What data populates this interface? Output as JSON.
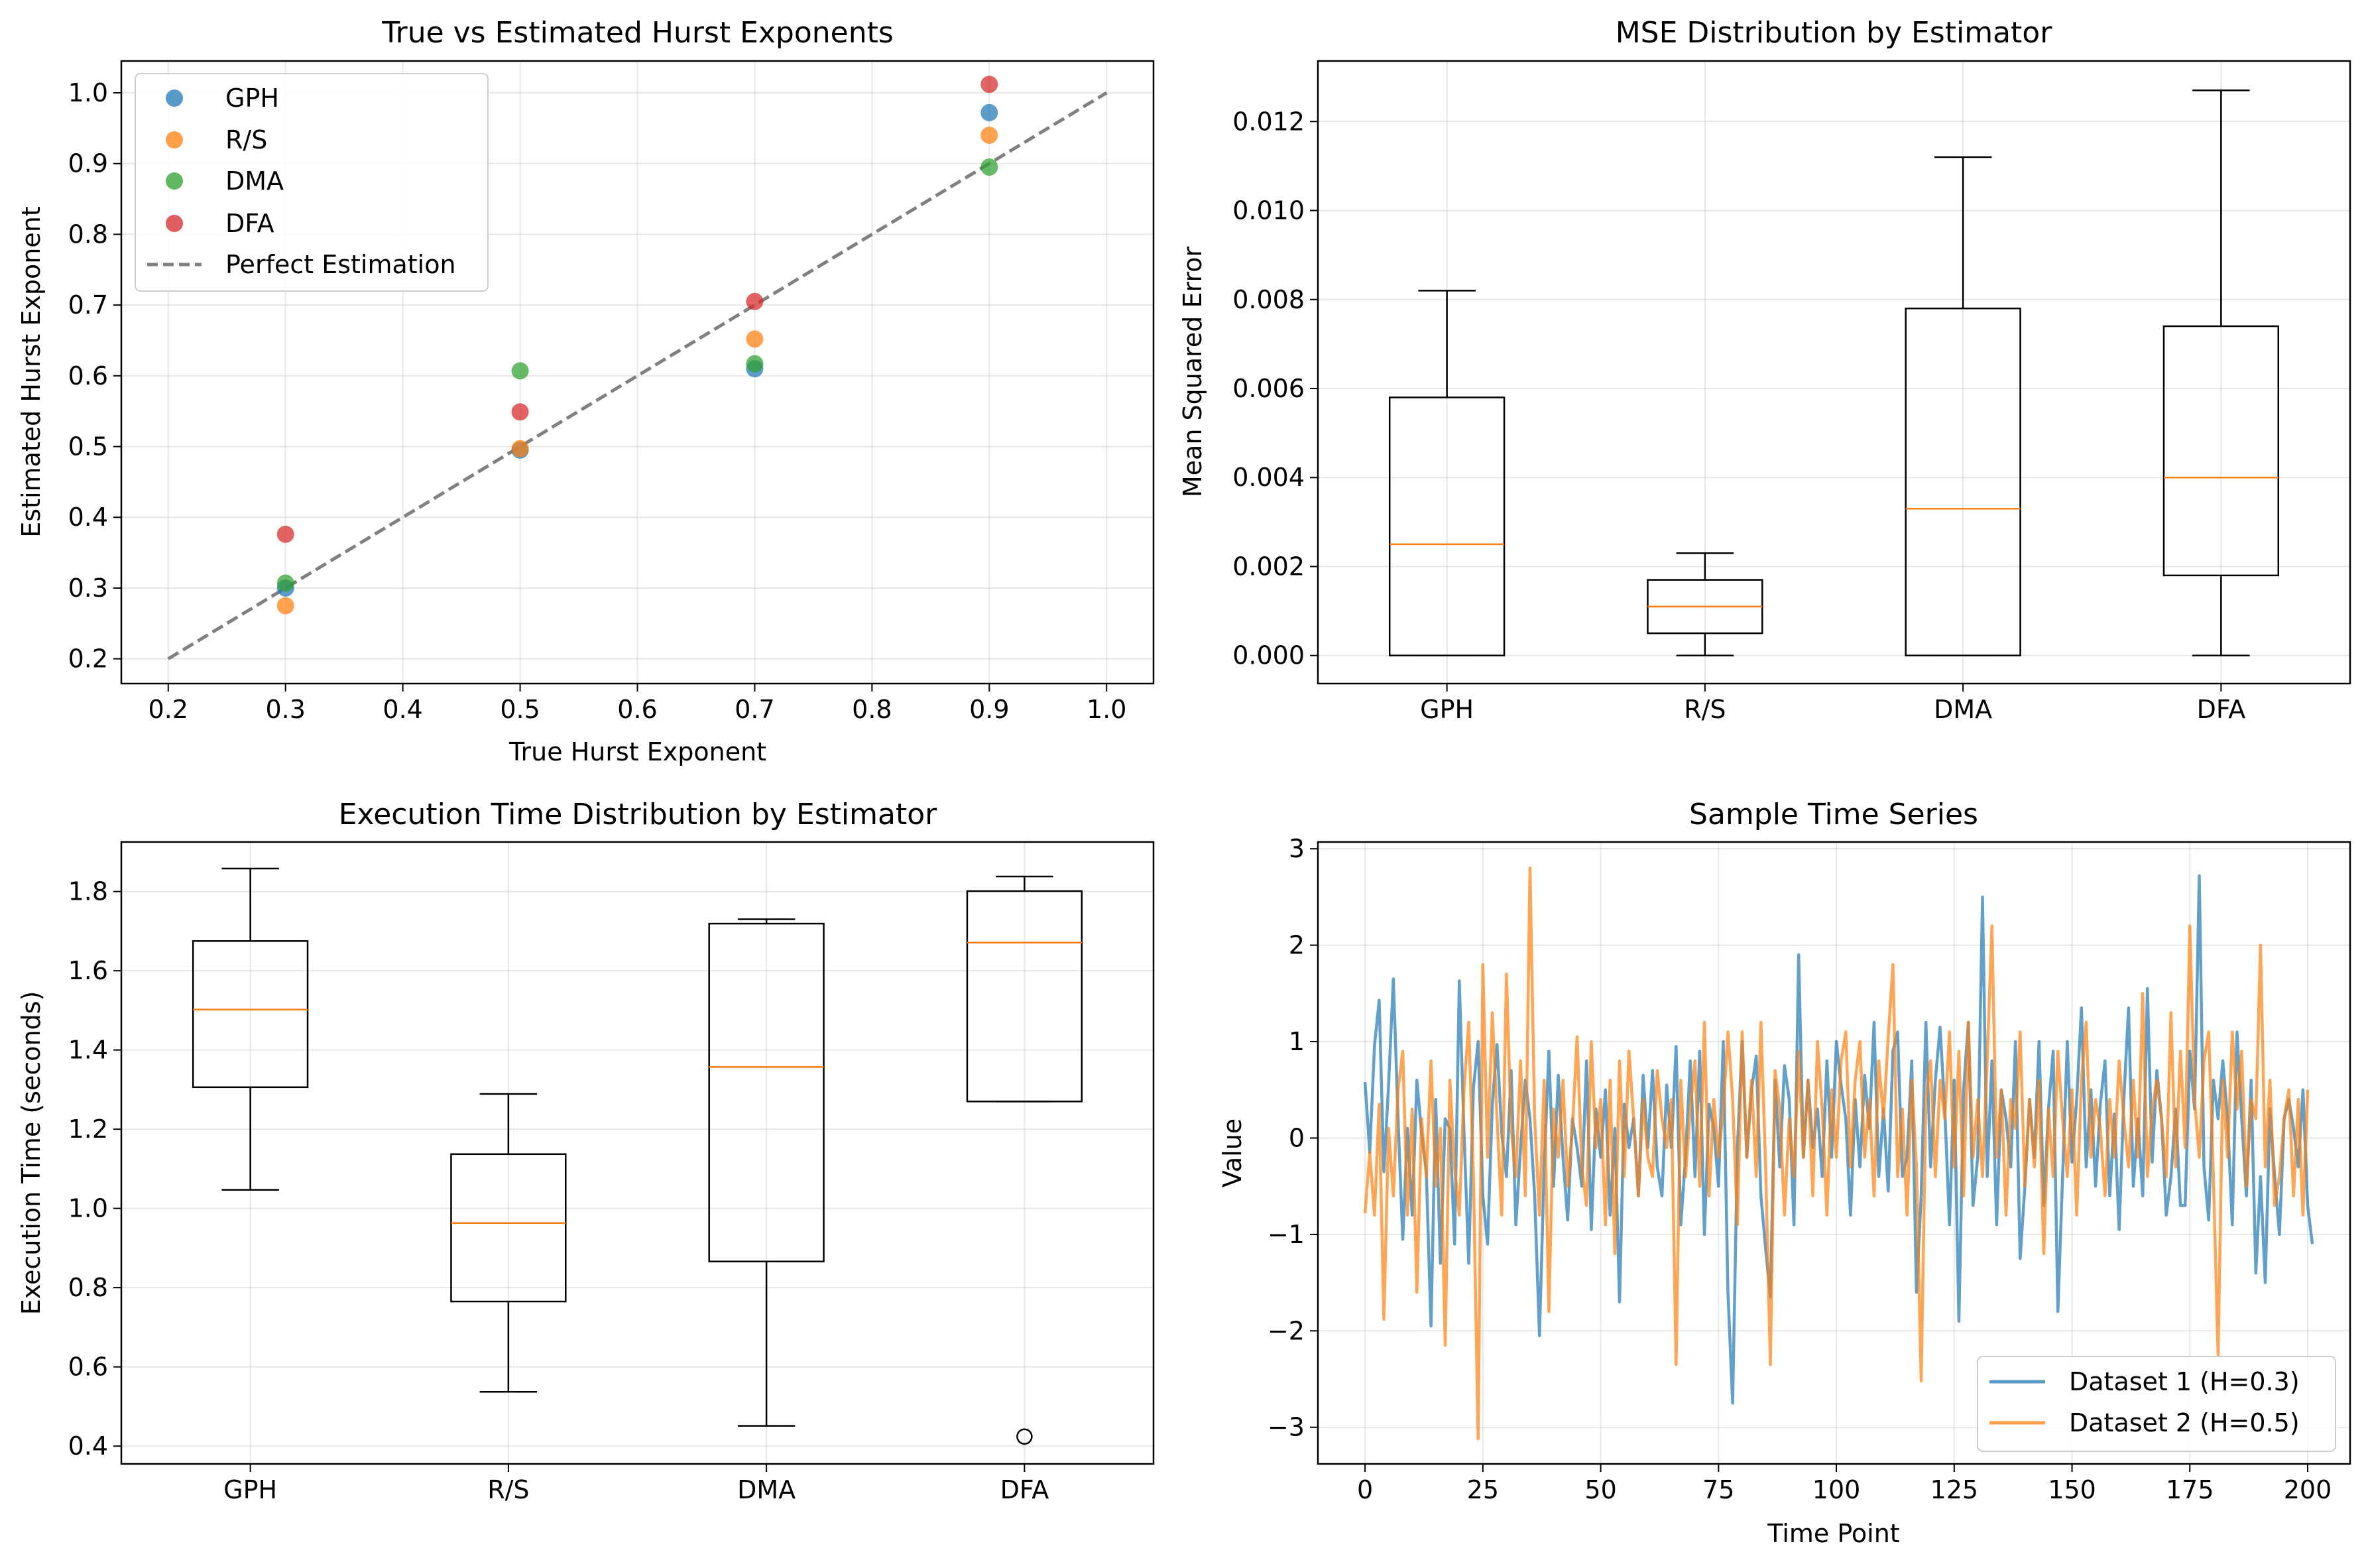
{
  "chart_data": [
    {
      "type": "scatter",
      "title": "True vs Estimated Hurst Exponents",
      "xlabel": "True Hurst Exponent",
      "ylabel": "Estimated Hurst Exponent",
      "xlim": [
        0.16,
        1.04
      ],
      "ylim": [
        0.165,
        1.045
      ],
      "xticks": [
        "0.2",
        "0.3",
        "0.4",
        "0.5",
        "0.6",
        "0.7",
        "0.8",
        "0.9",
        "1.0"
      ],
      "yticks": [
        "0.2",
        "0.3",
        "0.4",
        "0.5",
        "0.6",
        "0.7",
        "0.8",
        "0.9",
        "1.0"
      ],
      "grid": true,
      "legend": "upper-left",
      "series": [
        {
          "name": "GPH",
          "color": "#1f77b4",
          "x": [
            0.3,
            0.5,
            0.7,
            0.9
          ],
          "y": [
            0.3,
            0.495,
            0.61,
            0.972
          ]
        },
        {
          "name": "R/S",
          "color": "#ff7f0e",
          "x": [
            0.3,
            0.5,
            0.7,
            0.9
          ],
          "y": [
            0.275,
            0.497,
            0.652,
            0.94
          ]
        },
        {
          "name": "DMA",
          "color": "#2ca02c",
          "x": [
            0.3,
            0.5,
            0.7,
            0.9
          ],
          "y": [
            0.307,
            0.607,
            0.617,
            0.895
          ]
        },
        {
          "name": "DFA",
          "color": "#d62728",
          "x": [
            0.3,
            0.5,
            0.7,
            0.9
          ],
          "y": [
            0.376,
            0.549,
            0.705,
            1.012
          ]
        }
      ],
      "reference_line": {
        "name": "Perfect Estimation",
        "color": "#808080",
        "x": [
          0.2,
          1.0
        ],
        "y": [
          0.2,
          1.0
        ]
      }
    },
    {
      "type": "box",
      "title": "MSE Distribution by Estimator",
      "xlabel": "",
      "ylabel": "Mean Squared Error",
      "ylim": [
        -0.00063,
        0.01336
      ],
      "categories": [
        "GPH",
        "R/S",
        "DMA",
        "DFA"
      ],
      "yticks": [
        "0.000",
        "0.002",
        "0.004",
        "0.006",
        "0.008",
        "0.010",
        "0.012"
      ],
      "grid": true,
      "boxes": [
        {
          "whisker_low": 0.0,
          "q1": 0.0,
          "median": 0.0025,
          "q3": 0.0058,
          "whisker_high": 0.0082
        },
        {
          "whisker_low": 0.0,
          "q1": 0.0005,
          "median": 0.0011,
          "q3": 0.0017,
          "whisker_high": 0.0023
        },
        {
          "whisker_low": 0.0,
          "q1": 0.0,
          "median": 0.0033,
          "q3": 0.0078,
          "whisker_high": 0.0112
        },
        {
          "whisker_low": 0.0,
          "q1": 0.0018,
          "median": 0.004,
          "q3": 0.0074,
          "whisker_high": 0.0127
        }
      ],
      "median_color": "#ff7f0e"
    },
    {
      "type": "box",
      "title": "Execution Time Distribution by Estimator",
      "xlabel": "",
      "ylabel": "Execution Time (seconds)",
      "ylim": [
        0.355,
        1.925
      ],
      "categories": [
        "GPH",
        "R/S",
        "DMA",
        "DFA"
      ],
      "yticks": [
        "0.4",
        "0.6",
        "0.8",
        "1.0",
        "1.2",
        "1.4",
        "1.6",
        "1.8"
      ],
      "grid": true,
      "boxes": [
        {
          "whisker_low": 1.047,
          "q1": 1.306,
          "median": 1.502,
          "q3": 1.675,
          "whisker_high": 1.858,
          "outliers": []
        },
        {
          "whisker_low": 0.537,
          "q1": 0.765,
          "median": 0.963,
          "q3": 1.137,
          "whisker_high": 1.289,
          "outliers": []
        },
        {
          "whisker_low": 0.451,
          "q1": 0.866,
          "median": 1.357,
          "q3": 1.719,
          "whisker_high": 1.73,
          "outliers": []
        },
        {
          "whisker_low": 1.27,
          "q1": 1.27,
          "median": 1.671,
          "q3": 1.801,
          "whisker_high": 1.838,
          "outliers": [
            0.424
          ]
        }
      ],
      "median_color": "#ff7f0e"
    },
    {
      "type": "line",
      "title": "Sample Time Series",
      "xlabel": "Time Point",
      "ylabel": "Value",
      "xlim": [
        -10,
        209
      ],
      "ylim": [
        -3.38,
        3.07
      ],
      "xticks": [
        "0",
        "25",
        "50",
        "75",
        "100",
        "125",
        "150",
        "175",
        "200"
      ],
      "yticks": [
        "−3",
        "−2",
        "−1",
        "0",
        "1",
        "2",
        "3"
      ],
      "grid": true,
      "legend": "lower-right",
      "series": [
        {
          "name": "Dataset 1 (H=0.3)",
          "color": "#1f77b4",
          "values": [
            0.58,
            -0.15,
            0.95,
            1.43,
            -0.35,
            0.55,
            1.65,
            0.2,
            -1.05,
            0.1,
            -0.8,
            0.6,
            0.05,
            -0.35,
            -1.95,
            0.4,
            -1.3,
            0.2,
            0.1,
            -1.1,
            1.63,
            0.05,
            -1.3,
            0.52,
            1.0,
            -0.6,
            -1.1,
            0.35,
            0.97,
            0.05,
            -0.4,
            0.7,
            -0.9,
            -0.1,
            0.6,
            0.2,
            -0.6,
            -2.05,
            -0.3,
            0.9,
            -0.5,
            0.65,
            -0.2,
            -0.85,
            0.2,
            -0.1,
            -0.5,
            0.8,
            -0.95,
            0.3,
            -0.2,
            0.5,
            -0.8,
            0.1,
            -1.7,
            0.35,
            -0.1,
            0.2,
            -0.6,
            0.65,
            -0.1,
            0.7,
            -0.3,
            -0.6,
            0.55,
            -0.1,
            0.95,
            -0.9,
            -0.2,
            0.8,
            -0.4,
            0.9,
            -1.0,
            0.35,
            0.1,
            -0.5,
            1.0,
            -1.6,
            -2.75,
            -0.1,
            1.0,
            -0.2,
            0.5,
            0.85,
            -0.6,
            -1.15,
            -1.65,
            0.6,
            -0.3,
            0.75,
            0.4,
            -0.9,
            1.9,
            -0.2,
            0.6,
            -0.1,
            0.3,
            -0.4,
            0.8,
            -0.2,
            1.0,
            0.55,
            0.2,
            -0.8,
            0.4,
            -0.3,
            0.65,
            0.1,
            1.2,
            -0.4,
            0.3,
            -0.55,
            0.9,
            1.1,
            -0.4,
            -0.2,
            0.8,
            -1.6,
            -0.6,
            1.2,
            -0.3,
            0.6,
            1.15,
            0.3,
            -0.9,
            0.6,
            -1.9,
            0.5,
            1.2,
            -0.7,
            -0.2,
            2.5,
            -0.4,
            0.8,
            -0.9,
            0.5,
            0.2,
            -0.3,
            1.0,
            -1.25,
            -0.5,
            0.4,
            -0.2,
            1.0,
            -0.7,
            0.3,
            0.9,
            -1.8,
            -0.4,
            1.0,
            -0.25,
            0.4,
            1.35,
            -0.3,
            0.5,
            -0.5,
            0.35,
            0.8,
            -0.6,
            0.25,
            -0.95,
            0.4,
            1.35,
            -0.5,
            0.2,
            -0.6,
            1.55,
            -0.25,
            0.7,
            0.2,
            -0.8,
            -0.4,
            0.3,
            -0.7,
            -0.7,
            0.9,
            0.3,
            2.72,
            -0.3,
            -0.85,
            0.6,
            0.2,
            0.8,
            0.2,
            -0.9,
            1.1,
            0.2,
            -0.6,
            0.6,
            -1.4,
            -0.4,
            -1.5,
            0.3,
            -0.4,
            -1.0,
            0.2,
            0.4,
            0.1,
            -0.3,
            0.5,
            -0.7,
            -1.1
          ]
        },
        {
          "name": "Dataset 2 (H=0.5)",
          "color": "#ff7f0e",
          "values": [
            -0.78,
            -0.15,
            -0.8,
            0.35,
            -1.88,
            0.1,
            -0.6,
            0.5,
            0.9,
            -0.8,
            0.3,
            -1.6,
            0.2,
            -0.4,
            0.8,
            -0.5,
            0.1,
            -2.15,
            0.6,
            -0.3,
            -0.8,
            0.5,
            1.2,
            -0.4,
            -3.12,
            1.8,
            -0.2,
            1.3,
            0.2,
            -0.8,
            1.7,
            0.1,
            -0.4,
            0.8,
            -0.6,
            2.8,
            0.2,
            -0.8,
            0.6,
            -1.8,
            0.3,
            -0.2,
            0.6,
            -0.5,
            0.1,
            1.05,
            -0.3,
            -0.7,
            1.0,
            -0.1,
            0.4,
            -0.9,
            0.6,
            -1.2,
            0.8,
            -0.4,
            0.9,
            0.2,
            -0.6,
            0.4,
            -0.2,
            -0.4,
            0.7,
            0.2,
            -0.1,
            0.4,
            -2.35,
            0.6,
            -0.4,
            0.3,
            0.8,
            -0.5,
            1.2,
            -0.6,
            0.4,
            -0.2,
            0.3,
            1.1,
            0.4,
            -0.9,
            1.1,
            -0.2,
            0.6,
            -0.4,
            1.2,
            -0.3,
            -2.35,
            0.7,
            0.3,
            -0.8,
            0.2,
            -0.4,
            0.9,
            -0.2,
            0.6,
            -0.6,
            1.0,
            0.3,
            -0.8,
            0.5,
            -0.2,
            0.8,
            1.1,
            -0.3,
            0.6,
            1.0,
            -0.2,
            0.4,
            -0.6,
            0.8,
            0.2,
            1.05,
            1.8,
            -0.4,
            0.3,
            -0.8,
            0.6,
            -0.3,
            -2.52,
            0.4,
            0.8,
            -0.4,
            0.6,
            0.2,
            1.1,
            -0.3,
            0.9,
            -0.6,
            1.2,
            -0.2,
            0.4,
            -0.4,
            0.8,
            2.2,
            -0.2,
            0.5,
            -0.8,
            0.4,
            0.1,
            1.1,
            -0.5,
            0.4,
            -0.3,
            0.6,
            -1.2,
            0.3,
            -0.4,
            0.9,
            0.2,
            -0.4,
            0.5,
            -0.8,
            0.6,
            1.2,
            -0.2,
            0.4,
            0.1,
            -0.6,
            0.4,
            -0.2,
            0.8,
            0.2,
            -0.3,
            0.6,
            -0.2,
            1.5,
            -0.4,
            0.3,
            0.6,
            0.2,
            -0.4,
            1.3,
            -0.3,
            0.9,
            -0.1,
            2.2,
            0.4,
            -0.2,
            0.8,
            1.1,
            -0.4,
            -2.27,
            0.6,
            -0.2,
            1.1,
            0.3,
            0.9,
            -0.5,
            0.4,
            0.2,
            2.0,
            -0.3,
            0.6,
            -0.7,
            -0.4,
            0.2,
            0.5,
            -0.6,
            0.4,
            -0.8,
            0.5
          ]
        }
      ]
    }
  ]
}
